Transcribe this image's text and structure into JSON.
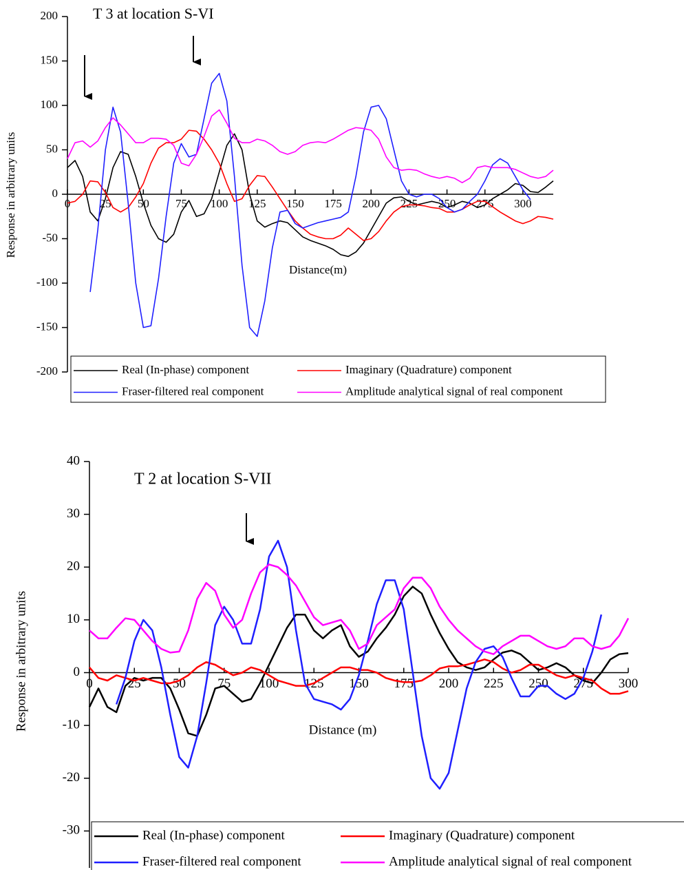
{
  "chart_data": [
    {
      "type": "line",
      "title": "T 3 at location S-VI",
      "x_label": "Distance(m)",
      "y_label": "Response in arbitrary units",
      "x": [
        0,
        5,
        10,
        15,
        20,
        25,
        30,
        35,
        40,
        45,
        50,
        55,
        60,
        65,
        70,
        75,
        80,
        85,
        90,
        95,
        100,
        105,
        110,
        115,
        120,
        125,
        130,
        135,
        140,
        145,
        150,
        155,
        160,
        165,
        170,
        175,
        180,
        185,
        190,
        195,
        200,
        205,
        210,
        215,
        220,
        225,
        230,
        235,
        240,
        245,
        250,
        255,
        260,
        265,
        270,
        275,
        280,
        285,
        290,
        295,
        300,
        305,
        310,
        315,
        320
      ],
      "xlim": [
        0,
        320
      ],
      "xticks": [
        0,
        25,
        50,
        75,
        100,
        125,
        150,
        175,
        200,
        225,
        250,
        275,
        300
      ],
      "ylim": [
        -200,
        200
      ],
      "yticks": [
        -200,
        -150,
        -100,
        -50,
        0,
        50,
        100,
        150,
        200
      ],
      "legend": "bottom",
      "series": [
        {
          "name": "Real (In-phase) component",
          "color": "#000000",
          "values": [
            30,
            38,
            20,
            -20,
            -30,
            -5,
            30,
            48,
            45,
            20,
            -10,
            -35,
            -50,
            -54,
            -45,
            -20,
            -7,
            -25,
            -22,
            -5,
            25,
            55,
            68,
            50,
            0,
            -30,
            -37,
            -33,
            -30,
            -32,
            -40,
            -48,
            -52,
            -55,
            -58,
            -62,
            -68,
            -70,
            -65,
            -55,
            -40,
            -25,
            -10,
            -4,
            -3,
            -8,
            -12,
            -10,
            -8,
            -10,
            -15,
            -12,
            -8,
            -10,
            -15,
            -12,
            -5,
            0,
            5,
            12,
            10,
            3,
            2,
            8,
            15
          ]
        },
        {
          "name": "Imaginary (Quadrature) component",
          "color": "#ff0000",
          "values": [
            -10,
            -8,
            0,
            15,
            14,
            2,
            -15,
            -20,
            -15,
            -3,
            12,
            35,
            52,
            58,
            58,
            62,
            72,
            71,
            62,
            50,
            35,
            12,
            -8,
            -5,
            10,
            21,
            20,
            8,
            -5,
            -18,
            -30,
            -38,
            -45,
            -48,
            -50,
            -50,
            -46,
            -38,
            -45,
            -52,
            -50,
            -42,
            -30,
            -20,
            -14,
            -12,
            -12,
            -13,
            -15,
            -16,
            -20,
            -20,
            -17,
            -12,
            -8,
            -8,
            -14,
            -20,
            -25,
            -30,
            -33,
            -30,
            -25,
            -26,
            -28
          ]
        },
        {
          "name": "Fraser-filtered real component",
          "color": "#1f1fff",
          "values": [
            null,
            null,
            null,
            -110,
            -40,
            50,
            98,
            70,
            -10,
            -100,
            -150,
            -148,
            -95,
            -25,
            35,
            57,
            42,
            45,
            85,
            125,
            136,
            105,
            20,
            -80,
            -150,
            -160,
            -120,
            -60,
            -20,
            -18,
            -33,
            -38,
            -35,
            -32,
            -30,
            -28,
            -26,
            -20,
            20,
            70,
            98,
            100,
            85,
            50,
            15,
            0,
            -3,
            0,
            0,
            -5,
            -15,
            -20,
            -17,
            -8,
            0,
            15,
            33,
            40,
            35,
            20,
            5,
            -6,
            null,
            null,
            null
          ]
        },
        {
          "name": "Amplitude analytical signal of real component",
          "color": "#ff00ff",
          "values": [
            40,
            58,
            60,
            53,
            60,
            75,
            86,
            78,
            68,
            58,
            58,
            63,
            63,
            62,
            55,
            35,
            32,
            45,
            65,
            88,
            95,
            80,
            63,
            58,
            58,
            62,
            60,
            55,
            48,
            45,
            48,
            55,
            58,
            59,
            58,
            62,
            67,
            72,
            75,
            74,
            72,
            62,
            42,
            30,
            27,
            28,
            27,
            23,
            20,
            18,
            20,
            18,
            13,
            18,
            30,
            32,
            30,
            30,
            30,
            28,
            24,
            20,
            18,
            20,
            27
          ]
        }
      ]
    },
    {
      "type": "line",
      "title": "T 2 at location S-VII",
      "x_label": "Distance (m)",
      "y_label": "Response in arbitrary units",
      "x": [
        0,
        5,
        10,
        15,
        20,
        25,
        30,
        35,
        40,
        45,
        50,
        55,
        60,
        65,
        70,
        75,
        80,
        85,
        90,
        95,
        100,
        105,
        110,
        115,
        120,
        125,
        130,
        135,
        140,
        145,
        150,
        155,
        160,
        165,
        170,
        175,
        180,
        185,
        190,
        195,
        200,
        205,
        210,
        215,
        220,
        225,
        230,
        235,
        240,
        245,
        250,
        255,
        260,
        265,
        270,
        275,
        280,
        285,
        290,
        295,
        300
      ],
      "xlim": [
        0,
        300
      ],
      "xticks": [
        0,
        25,
        50,
        75,
        100,
        125,
        150,
        175,
        200,
        225,
        250,
        275,
        300
      ],
      "ylim": [
        -37,
        40
      ],
      "yticks": [
        -30,
        -20,
        -10,
        0,
        10,
        20,
        30,
        40
      ],
      "legend": "bottom",
      "series": [
        {
          "name": "Real (In-phase) component",
          "color": "#000000",
          "values": [
            -6.5,
            -3,
            -6.5,
            -7.5,
            -2.5,
            -1,
            -1.5,
            -1,
            -1,
            -3,
            -7,
            -11.5,
            -12,
            -8,
            -3,
            -2.5,
            -4,
            -5.5,
            -5,
            -2,
            1.5,
            5,
            8.5,
            11,
            11,
            8,
            6.5,
            8,
            9,
            5,
            3,
            4,
            6.5,
            8.5,
            11,
            14.5,
            16.3,
            15,
            11,
            7.5,
            4.5,
            2,
            1,
            0.5,
            1,
            2.5,
            3.8,
            4.2,
            3.5,
            2,
            0.5,
            1,
            1.8,
            1,
            -0.5,
            -1.5,
            -2,
            0,
            2.5,
            3.5,
            3.7
          ]
        },
        {
          "name": "Imaginary (Quadrature) component",
          "color": "#ff0000",
          "values": [
            1,
            -1,
            -1.5,
            -0.5,
            -1,
            -1.5,
            -1,
            -1.5,
            -2,
            -2,
            -1.5,
            -0.5,
            1,
            2,
            1.5,
            0.5,
            -0.5,
            0,
            1,
            0.5,
            -0.5,
            -1.5,
            -2,
            -2.5,
            -2.5,
            -2,
            -1,
            0,
            1,
            1,
            0.5,
            0.5,
            0,
            -1,
            -1.5,
            -1.8,
            -1.8,
            -1.5,
            -0.5,
            0.8,
            1.2,
            1.2,
            1.5,
            2,
            2.5,
            2,
            0.8,
            0,
            0.5,
            1.5,
            1.5,
            0.5,
            -0.5,
            -1,
            -0.5,
            -1,
            -1.5,
            -3,
            -4,
            -4,
            -3.5
          ]
        },
        {
          "name": "Fraser-filtered real component",
          "color": "#1f1fff",
          "values": [
            null,
            null,
            null,
            -6,
            -1,
            6,
            10,
            8,
            1,
            -8,
            -16,
            -18,
            -12,
            -2,
            9,
            12.5,
            10,
            5.5,
            5.5,
            12,
            22,
            25,
            20,
            8,
            -2,
            -5,
            -5.5,
            -6,
            -7,
            -5,
            -0.5,
            6,
            13,
            17.5,
            17.5,
            12,
            0,
            -12,
            -20,
            -22,
            -19,
            -11,
            -3,
            2,
            4.5,
            5,
            3,
            -1,
            -4.5,
            -4.5,
            -2.5,
            -2.5,
            -4,
            -5,
            -4,
            -1,
            4,
            11,
            null,
            null,
            null
          ]
        },
        {
          "name": "Amplitude analytical signal of real component",
          "color": "#ff00ff",
          "values": [
            8,
            6.5,
            6.5,
            8.5,
            10.3,
            10,
            8,
            6,
            4.5,
            3.8,
            4,
            8,
            14,
            17,
            15.5,
            11,
            8.5,
            10,
            15,
            19,
            20.5,
            20,
            18.5,
            16.5,
            13.5,
            10.5,
            9,
            9.5,
            10,
            8,
            4.5,
            5.5,
            9,
            10.5,
            12,
            16,
            18,
            18,
            16,
            12.5,
            10,
            8,
            6.5,
            5,
            4,
            3.5,
            5,
            6,
            7,
            7,
            6,
            5,
            4.5,
            5,
            6.5,
            6.5,
            5,
            4.5,
            5,
            7,
            10.3
          ]
        }
      ]
    }
  ]
}
